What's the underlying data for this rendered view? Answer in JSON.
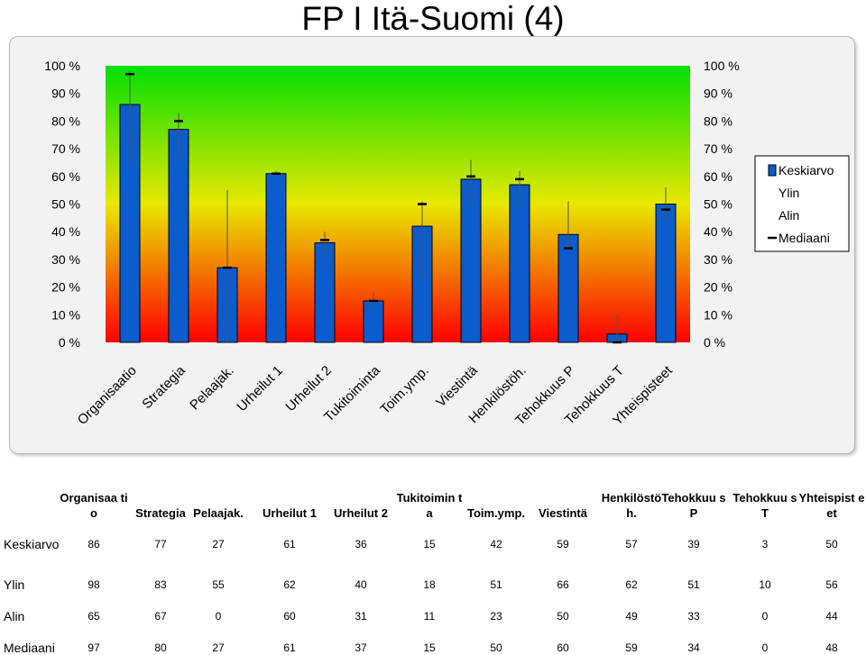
{
  "title": "FP I Itä-Suomi (4)",
  "chart_data": {
    "type": "bar",
    "categories": [
      "Organisaatio",
      "Strategia",
      "Pelaajak.",
      "Urheilut 1",
      "Urheilut 2",
      "Tukitoiminta",
      "Toim.ymp.",
      "Viestintä",
      "Henkilöstöh.",
      "Tehokkuus P",
      "Tehokkuus T",
      "Yhteispisteet"
    ],
    "series": [
      {
        "name": "Keskiarvo",
        "values": [
          86,
          77,
          27,
          61,
          36,
          15,
          42,
          59,
          57,
          39,
          3,
          50
        ],
        "color": "#0b5ccc"
      },
      {
        "name": "Ylin",
        "values": [
          98,
          83,
          55,
          62,
          40,
          18,
          51,
          66,
          62,
          51,
          10,
          56
        ]
      },
      {
        "name": "Alin",
        "values": [
          65,
          67,
          0,
          60,
          31,
          11,
          23,
          50,
          49,
          33,
          0,
          44
        ]
      },
      {
        "name": "Mediaani",
        "values": [
          97,
          80,
          27,
          61,
          37,
          15,
          50,
          60,
          59,
          34,
          0,
          48
        ]
      }
    ],
    "ylim": [
      0,
      100
    ],
    "y_ticks": [
      "0 %",
      "10 %",
      "20 %",
      "30 %",
      "40 %",
      "50 %",
      "60 %",
      "70 %",
      "80 %",
      "90 %",
      "100 %"
    ],
    "legend_position": "right",
    "background_gradient": [
      "#00e000",
      "#e8e800",
      "#ff0000"
    ]
  },
  "table": {
    "headers": [
      "Organisaa tio",
      "Strategia",
      "Pelaajak.",
      "Urheilut 1",
      "Urheilut 2",
      "Tukitoimin ta",
      "Toim.ymp.",
      "Viestintä",
      "Henkilöstö h.",
      "Tehokkuu s P",
      "Tehokkuu s T",
      "Yhteispist eet"
    ],
    "rows": [
      {
        "label": "Keskiarvo",
        "values": [
          "86",
          "77",
          "27",
          "61",
          "36",
          "15",
          "42",
          "59",
          "57",
          "39",
          "3",
          "50"
        ]
      },
      {
        "label": "Ylin",
        "values": [
          "98",
          "83",
          "55",
          "62",
          "40",
          "18",
          "51",
          "66",
          "62",
          "51",
          "10",
          "56"
        ]
      },
      {
        "label": "Alin",
        "values": [
          "65",
          "67",
          "0",
          "60",
          "31",
          "11",
          "23",
          "50",
          "49",
          "33",
          "0",
          "44"
        ]
      },
      {
        "label": "Mediaani",
        "values": [
          "97",
          "80",
          "27",
          "61",
          "37",
          "15",
          "50",
          "60",
          "59",
          "34",
          "0",
          "48"
        ]
      }
    ]
  }
}
